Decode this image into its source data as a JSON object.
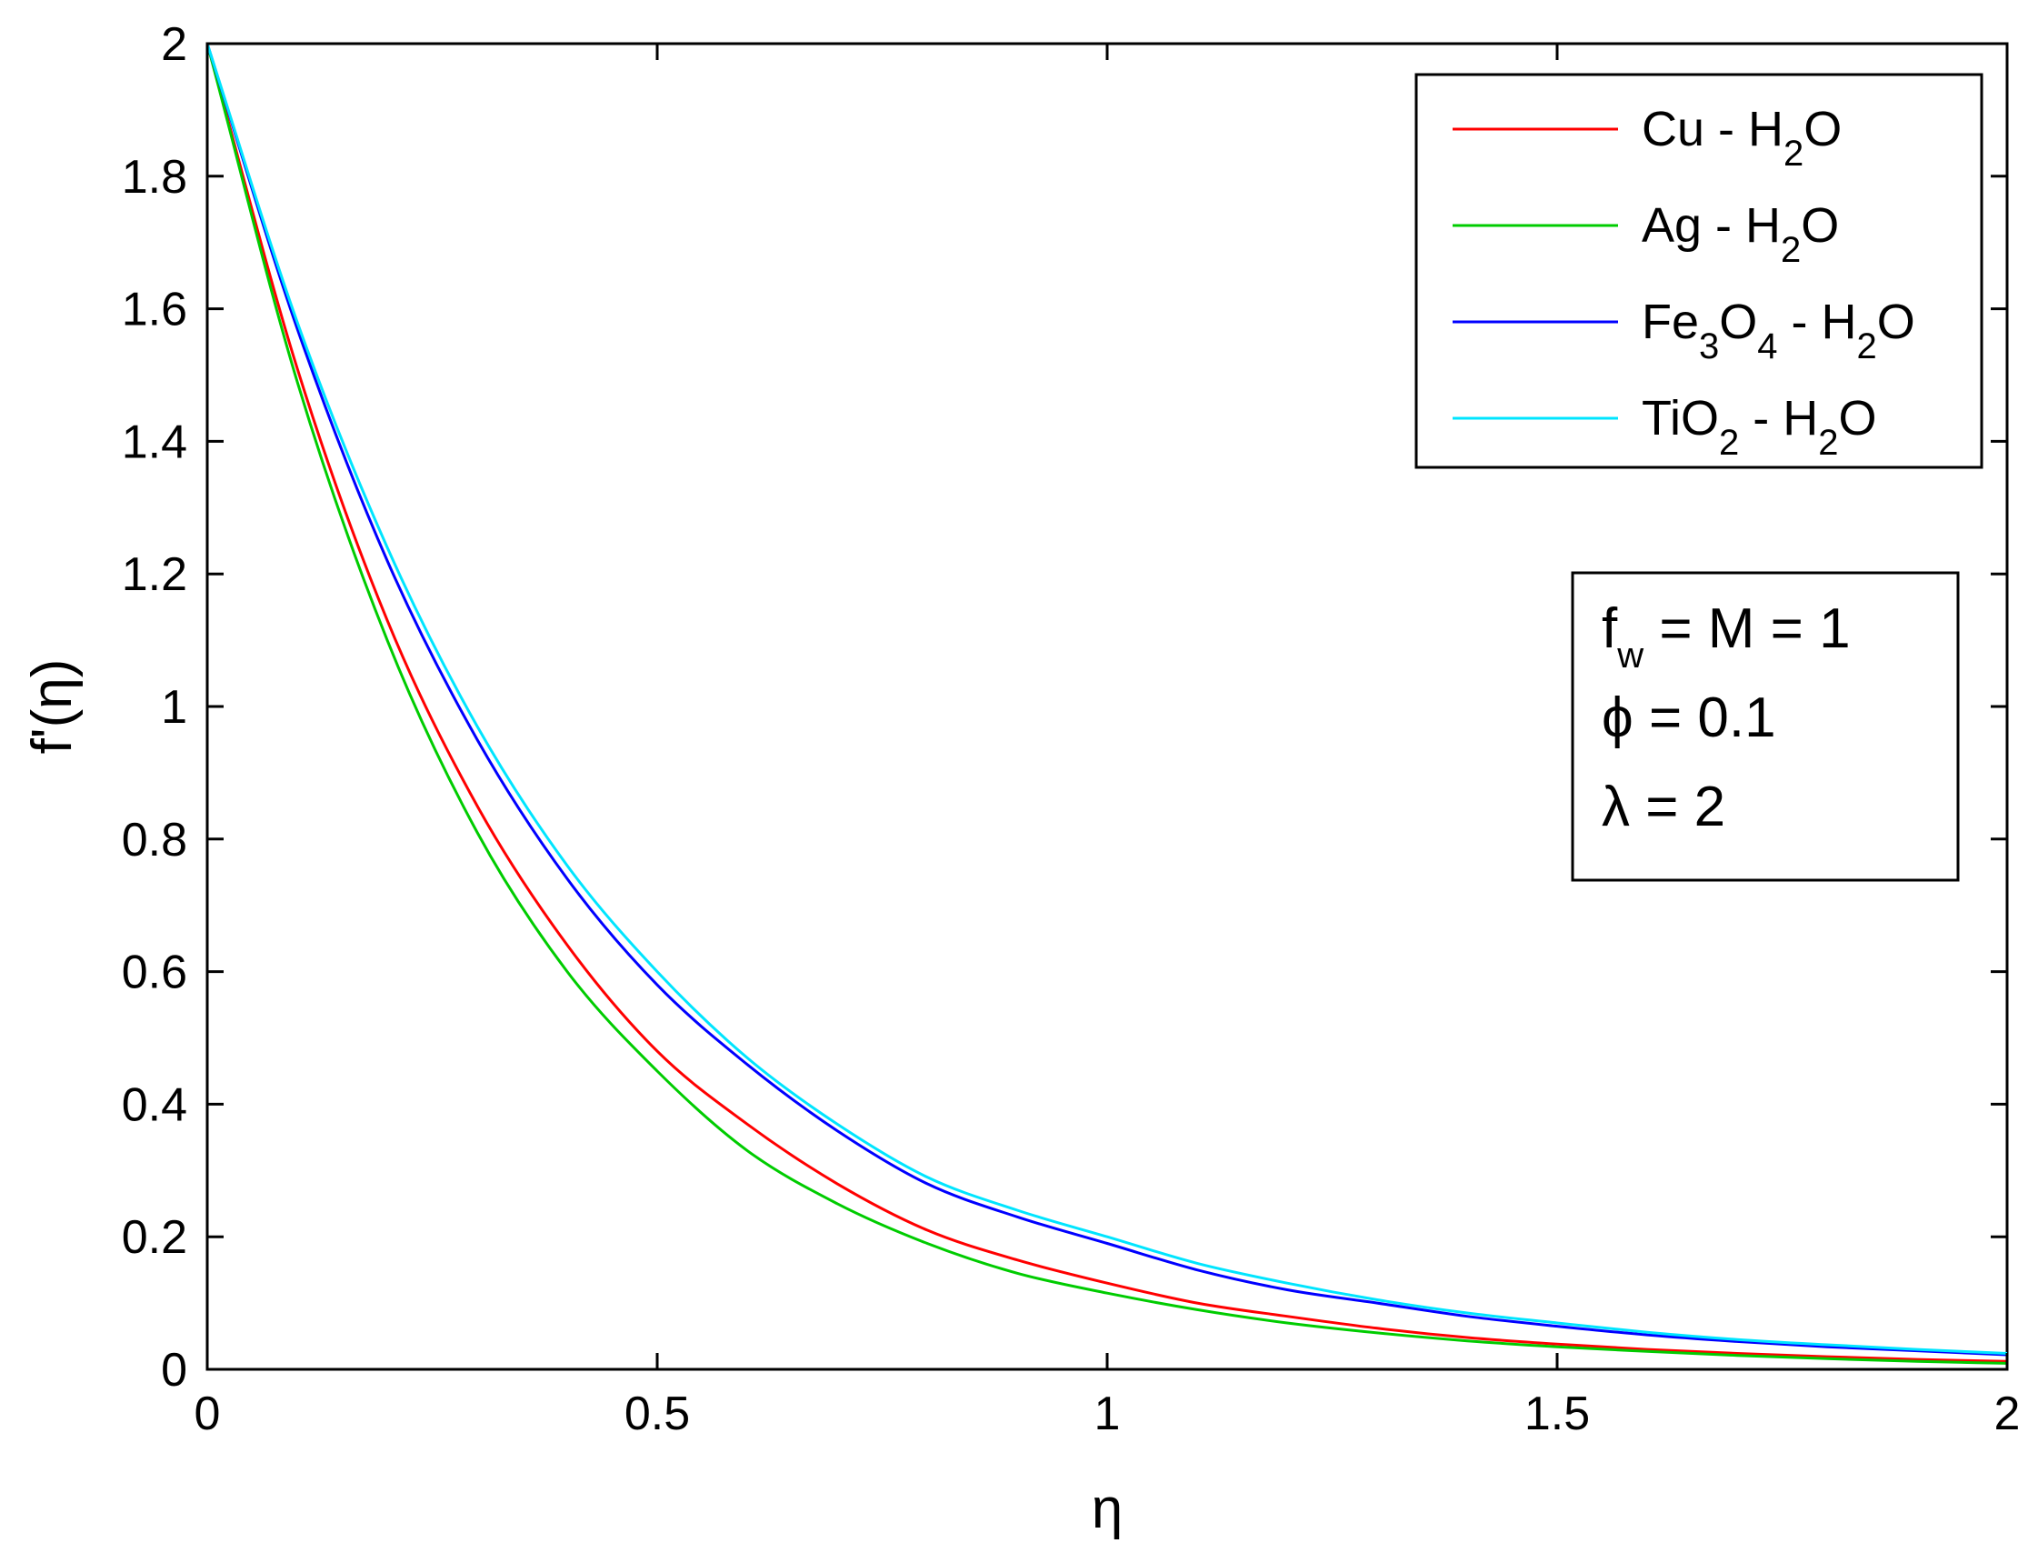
{
  "chart_data": {
    "type": "line",
    "xlabel": "η",
    "ylabel": "f'(η)",
    "xlim": [
      0,
      2
    ],
    "ylim": [
      0,
      2
    ],
    "xticks": [
      0,
      0.5,
      1,
      1.5,
      2
    ],
    "xtick_labels": [
      "0",
      "0.5",
      "1",
      "1.5",
      "2"
    ],
    "yticks": [
      0,
      0.2,
      0.4,
      0.6,
      0.8,
      1,
      1.2,
      1.4,
      1.6,
      1.8,
      2
    ],
    "ytick_labels": [
      "0",
      "0.2",
      "0.4",
      "0.6",
      "0.8",
      "1",
      "1.2",
      "1.4",
      "1.6",
      "1.8",
      "2"
    ],
    "grid": false,
    "legend_position": "top-right",
    "x": [
      0,
      0.1,
      0.2,
      0.3,
      0.4,
      0.5,
      0.6,
      0.7,
      0.8,
      0.9,
      1.0,
      1.1,
      1.2,
      1.3,
      1.4,
      1.5,
      1.6,
      1.7,
      1.8,
      1.9,
      2.0
    ],
    "series": [
      {
        "name": "Cu - H2O",
        "label_parts": [
          {
            "t": "Cu - H"
          },
          {
            "t": "2",
            "sub": true
          },
          {
            "t": "O"
          }
        ],
        "color": "#ff0000",
        "values": [
          2.0,
          1.51,
          1.13,
          0.85,
          0.64,
          0.48,
          0.37,
          0.28,
          0.21,
          0.165,
          0.13,
          0.1,
          0.08,
          0.062,
          0.048,
          0.038,
          0.03,
          0.024,
          0.019,
          0.015,
          0.012
        ]
      },
      {
        "name": "Ag - H2O",
        "label_parts": [
          {
            "t": "Ag - H"
          },
          {
            "t": "2",
            "sub": true
          },
          {
            "t": "O"
          }
        ],
        "color": "#00cc00",
        "values": [
          2.0,
          1.49,
          1.1,
          0.81,
          0.6,
          0.45,
          0.33,
          0.25,
          0.19,
          0.145,
          0.115,
          0.09,
          0.07,
          0.055,
          0.043,
          0.034,
          0.027,
          0.021,
          0.016,
          0.012,
          0.009
        ]
      },
      {
        "name": "Fe3O4 - H2O",
        "label_parts": [
          {
            "t": "Fe"
          },
          {
            "t": "3",
            "sub": true
          },
          {
            "t": "O"
          },
          {
            "t": "4",
            "sub": true
          },
          {
            "t": " - H"
          },
          {
            "t": "2",
            "sub": true
          },
          {
            "t": "O"
          }
        ],
        "color": "#0000ff",
        "values": [
          2.0,
          1.57,
          1.22,
          0.95,
          0.74,
          0.58,
          0.46,
          0.36,
          0.28,
          0.23,
          0.19,
          0.15,
          0.12,
          0.1,
          0.08,
          0.065,
          0.052,
          0.042,
          0.034,
          0.028,
          0.022
        ]
      },
      {
        "name": "TiO2 - H2O",
        "label_parts": [
          {
            "t": "TiO"
          },
          {
            "t": "2",
            "sub": true
          },
          {
            "t": " - H"
          },
          {
            "t": "2",
            "sub": true
          },
          {
            "t": "O"
          }
        ],
        "color": "#00e5ff",
        "values": [
          2.0,
          1.58,
          1.24,
          0.97,
          0.76,
          0.6,
          0.47,
          0.37,
          0.29,
          0.24,
          0.2,
          0.16,
          0.13,
          0.105,
          0.085,
          0.07,
          0.056,
          0.045,
          0.037,
          0.03,
          0.024
        ]
      }
    ],
    "annotation": {
      "lines": [
        [
          {
            "t": "f"
          },
          {
            "t": "w",
            "sub": true
          },
          {
            "t": " = M = 1"
          }
        ],
        [
          {
            "t": "ϕ = 0.1"
          }
        ],
        [
          {
            "t": "λ = 2"
          }
        ]
      ]
    }
  }
}
